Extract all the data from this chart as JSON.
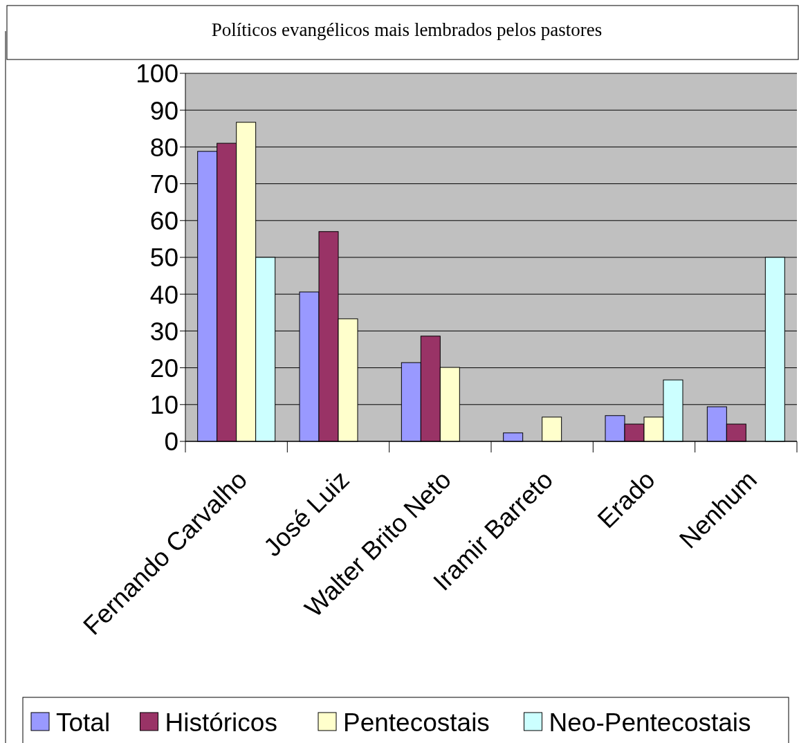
{
  "chart_data": {
    "type": "bar",
    "title": "Políticos evangélicos mais lembrados pelos pastores",
    "categories": [
      "Fernando Carvalho",
      "José Luiz",
      "Walter Brito Neto",
      "Iramir Barreto",
      "Erado",
      "Nenhum"
    ],
    "series": [
      {
        "name": "Total",
        "color": "#9999ff",
        "values": [
          78.8,
          40.6,
          21.4,
          2.3,
          7,
          9.4
        ]
      },
      {
        "name": "Históricos",
        "color": "#993366",
        "values": [
          81,
          57,
          28.6,
          null,
          4.7,
          4.7
        ]
      },
      {
        "name": "Pentecostais",
        "color": "#ffffcc",
        "values": [
          86.7,
          33.3,
          20.1,
          6.6,
          6.6,
          null
        ]
      },
      {
        "name": "Neo-Pentecostais",
        "color": "#ccffff",
        "values": [
          50,
          null,
          null,
          null,
          16.7,
          50
        ]
      }
    ],
    "ylim": [
      0,
      100
    ],
    "yticks": [
      0,
      10,
      20,
      30,
      40,
      50,
      60,
      70,
      80,
      90,
      100
    ],
    "grid": "y",
    "legend": "bottom"
  }
}
